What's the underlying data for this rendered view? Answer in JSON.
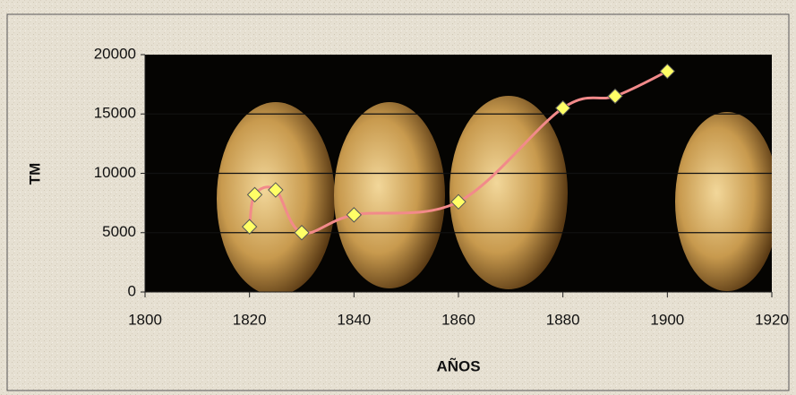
{
  "chart_data": {
    "type": "scatter-line",
    "x": [
      1820,
      1821,
      1825,
      1830,
      1840,
      1860,
      1880,
      1890,
      1900
    ],
    "series": [
      {
        "color": "#f28a8a",
        "values": [
          5500,
          8200,
          8600,
          5000,
          6500,
          7600,
          15500,
          16500,
          18600
        ]
      }
    ],
    "marker_color": "#ffff66",
    "xlim": [
      1800,
      1920
    ],
    "xticks": [
      1800,
      1820,
      1840,
      1860,
      1880,
      1900,
      1920
    ],
    "ylim": [
      0,
      20000
    ],
    "yticks": [
      0,
      5000,
      10000,
      15000,
      20000
    ],
    "grid": true,
    "xlabel": "AÑOS",
    "ylabel": "TM"
  }
}
